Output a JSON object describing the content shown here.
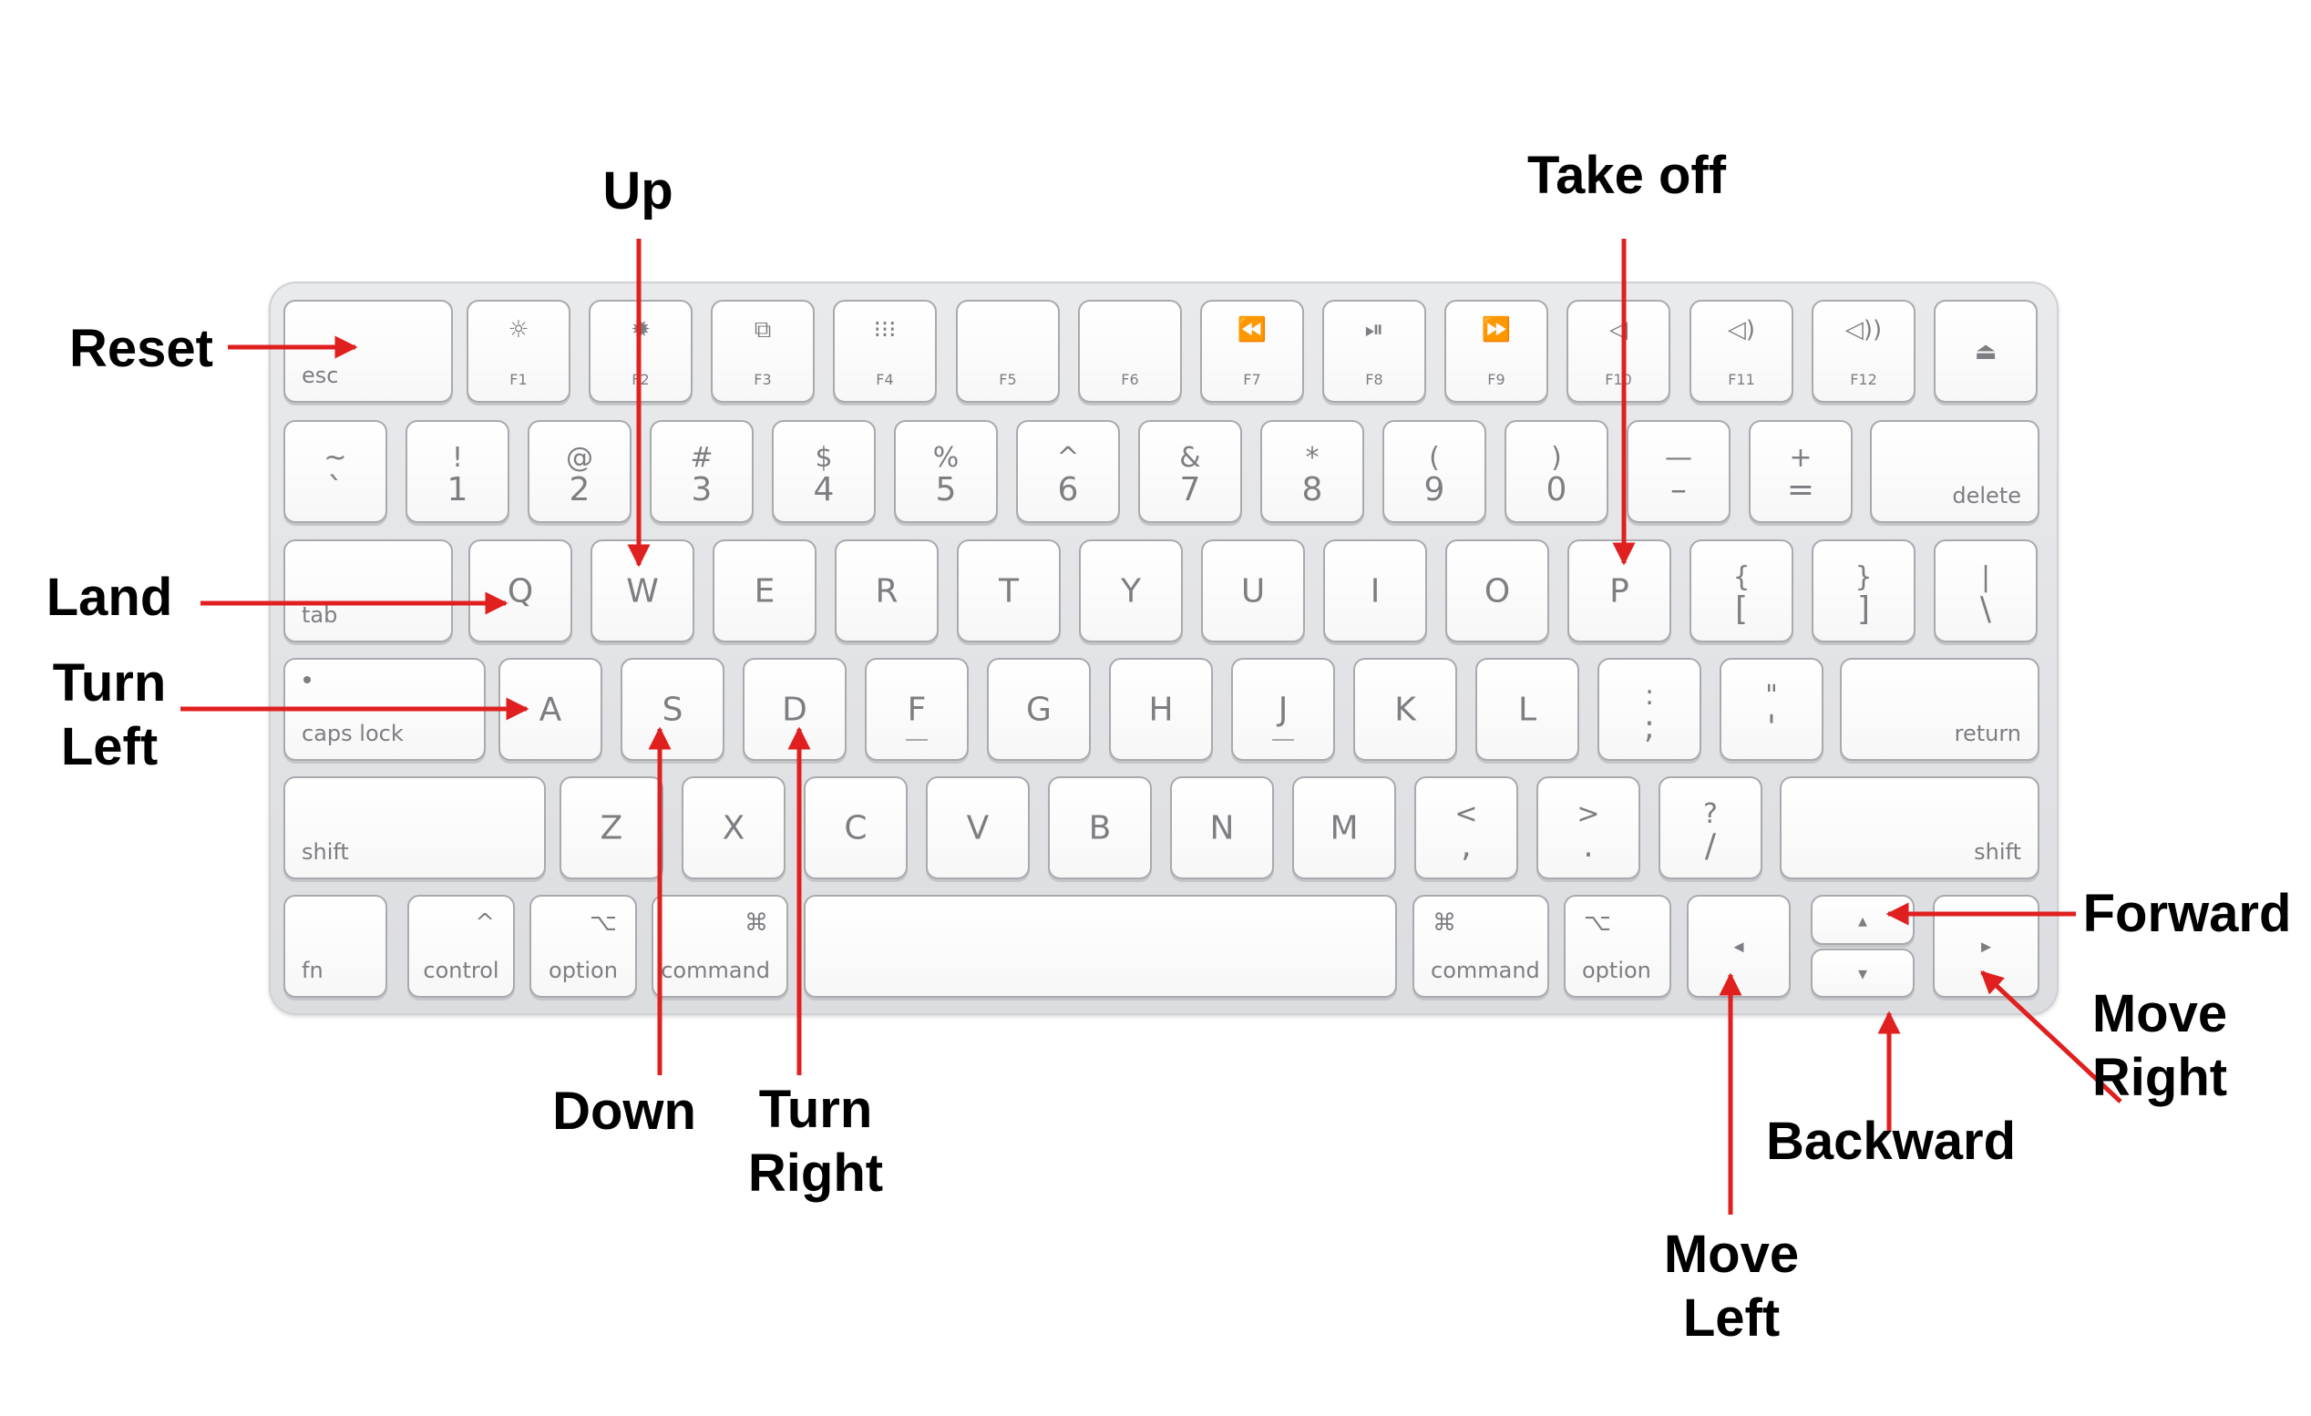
{
  "colors": {
    "arrow": "#e01f1f",
    "key_text": "#7d7e82",
    "label_text": "#000000"
  },
  "labels": {
    "reset": "Reset",
    "up": "Up",
    "take_off": "Take off",
    "land": "Land",
    "turn_left_1": "Turn",
    "turn_left_2": "Left",
    "down": "Down",
    "turn_right_1": "Turn",
    "turn_right_2": "Right",
    "forward": "Forward",
    "move_right_1": "Move",
    "move_right_2": "Right",
    "backward": "Backward",
    "move_left_1": "Move",
    "move_left_2": "Left"
  },
  "keyboard": {
    "fn_row": [
      {
        "label": "esc"
      },
      {
        "icon": "brightness-low-icon",
        "glyph": "☼",
        "label": "F1"
      },
      {
        "icon": "brightness-high-icon",
        "glyph": "✹",
        "label": "F2"
      },
      {
        "icon": "mission-control-icon",
        "glyph": "⧉",
        "label": "F3"
      },
      {
        "icon": "launchpad-icon",
        "glyph": "⁝⁝⁝",
        "label": "F4"
      },
      {
        "label": "F5"
      },
      {
        "label": "F6"
      },
      {
        "icon": "rewind-icon",
        "glyph": "⏪",
        "label": "F7"
      },
      {
        "icon": "play-pause-icon",
        "glyph": "⏯",
        "label": "F8"
      },
      {
        "icon": "fast-forward-icon",
        "glyph": "⏩",
        "label": "F9"
      },
      {
        "icon": "mute-icon",
        "glyph": "◁",
        "label": "F10"
      },
      {
        "icon": "volume-down-icon",
        "glyph": "◁)",
        "label": "F11"
      },
      {
        "icon": "volume-up-icon",
        "glyph": "◁))",
        "label": "F12"
      },
      {
        "icon": "eject-icon",
        "glyph": "⏏"
      }
    ],
    "num_row": [
      {
        "top": "~",
        "bottom": "`"
      },
      {
        "top": "!",
        "bottom": "1"
      },
      {
        "top": "@",
        "bottom": "2"
      },
      {
        "top": "#",
        "bottom": "3"
      },
      {
        "top": "$",
        "bottom": "4"
      },
      {
        "top": "%",
        "bottom": "5"
      },
      {
        "top": "^",
        "bottom": "6"
      },
      {
        "top": "&",
        "bottom": "7"
      },
      {
        "top": "*",
        "bottom": "8"
      },
      {
        "top": "(",
        "bottom": "9"
      },
      {
        "top": ")",
        "bottom": "0"
      },
      {
        "top": "—",
        "bottom": "–"
      },
      {
        "top": "+",
        "bottom": "="
      },
      {
        "label": "delete"
      }
    ],
    "q_row": [
      {
        "label": "tab"
      },
      {
        "char": "Q"
      },
      {
        "char": "W"
      },
      {
        "char": "E"
      },
      {
        "char": "R"
      },
      {
        "char": "T"
      },
      {
        "char": "Y"
      },
      {
        "char": "U"
      },
      {
        "char": "I"
      },
      {
        "char": "O"
      },
      {
        "char": "P"
      },
      {
        "top": "{",
        "bottom": "["
      },
      {
        "top": "}",
        "bottom": "]"
      },
      {
        "top": "|",
        "bottom": "\\"
      }
    ],
    "a_row": [
      {
        "label": "caps lock"
      },
      {
        "char": "A"
      },
      {
        "char": "S"
      },
      {
        "char": "D"
      },
      {
        "char": "F"
      },
      {
        "char": "G"
      },
      {
        "char": "H"
      },
      {
        "char": "J"
      },
      {
        "char": "K"
      },
      {
        "char": "L"
      },
      {
        "top": ":",
        "bottom": ";"
      },
      {
        "top": "\"",
        "bottom": "'"
      },
      {
        "label": "return"
      }
    ],
    "z_row": [
      {
        "label": "shift"
      },
      {
        "char": "Z"
      },
      {
        "char": "X"
      },
      {
        "char": "C"
      },
      {
        "char": "V"
      },
      {
        "char": "B"
      },
      {
        "char": "N"
      },
      {
        "char": "M"
      },
      {
        "top": "<",
        "bottom": ","
      },
      {
        "top": ">",
        "bottom": "."
      },
      {
        "top": "?",
        "bottom": "/"
      },
      {
        "label": "shift"
      }
    ],
    "bottom_row": [
      {
        "label": "fn"
      },
      {
        "symbol": "^",
        "label": "control"
      },
      {
        "symbol": "⌥",
        "label": "option"
      },
      {
        "symbol": "⌘",
        "label": "command"
      },
      {
        "label": ""
      },
      {
        "symbol": "⌘",
        "label": "command"
      },
      {
        "symbol": "⌥",
        "label": "option"
      },
      {
        "glyph": "◂"
      },
      {
        "glyph": "▴"
      },
      {
        "glyph": "▾"
      },
      {
        "glyph": "▸"
      }
    ]
  }
}
